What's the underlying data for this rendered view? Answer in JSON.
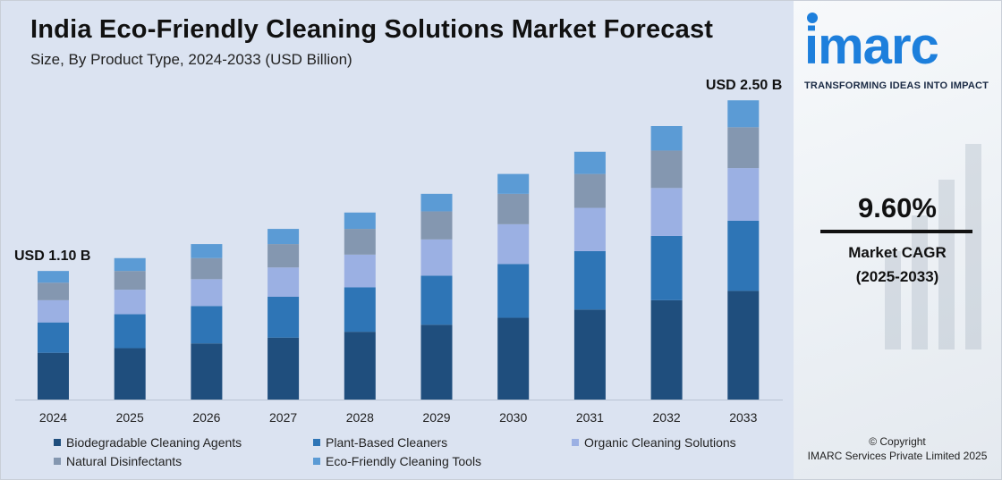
{
  "header": {
    "title": "India Eco-Friendly Cleaning Solutions Market Forecast",
    "subtitle": "Size, By Product Type, 2024-2033 (USD Billion)"
  },
  "chart_data": {
    "type": "bar",
    "stacked": true,
    "categories": [
      "2024",
      "2025",
      "2026",
      "2027",
      "2028",
      "2029",
      "2030",
      "2031",
      "2032",
      "2033"
    ],
    "series": [
      {
        "name": "Biodegradable Cleaning Agents",
        "color": "#1f4e7d",
        "values": [
          0.4,
          0.44,
          0.48,
          0.53,
          0.58,
          0.64,
          0.7,
          0.77,
          0.85,
          0.93
        ]
      },
      {
        "name": "Plant-Based Cleaners",
        "color": "#2e75b6",
        "values": [
          0.26,
          0.29,
          0.32,
          0.35,
          0.38,
          0.42,
          0.46,
          0.5,
          0.55,
          0.6
        ]
      },
      {
        "name": "Organic Cleaning Solutions",
        "color": "#9bb0e3",
        "values": [
          0.19,
          0.21,
          0.23,
          0.25,
          0.28,
          0.31,
          0.34,
          0.37,
          0.41,
          0.45
        ]
      },
      {
        "name": "Natural Disinfectants",
        "color": "#8497b0",
        "values": [
          0.15,
          0.16,
          0.18,
          0.2,
          0.22,
          0.24,
          0.26,
          0.29,
          0.32,
          0.35
        ]
      },
      {
        "name": "Eco-Friendly Cleaning Tools",
        "color": "#5b9bd5",
        "values": [
          0.1,
          0.11,
          0.12,
          0.13,
          0.14,
          0.15,
          0.17,
          0.19,
          0.21,
          0.23
        ]
      }
    ],
    "annotations": [
      {
        "category": "2024",
        "label": "USD 1.10 B"
      },
      {
        "category": "2033",
        "label": "USD 2.50 B"
      }
    ],
    "ylim": [
      0,
      2.6
    ],
    "grid": false,
    "legend_position": "bottom"
  },
  "sidebar": {
    "logo_text": "imarc",
    "tagline": "TRANSFORMING IDEAS INTO IMPACT",
    "cagr_value": "9.60%",
    "cagr_label": "Market CAGR",
    "cagr_period": "(2025-2033)",
    "copyright": "© Copyright",
    "company": "IMARC Services Private Limited 2025"
  }
}
